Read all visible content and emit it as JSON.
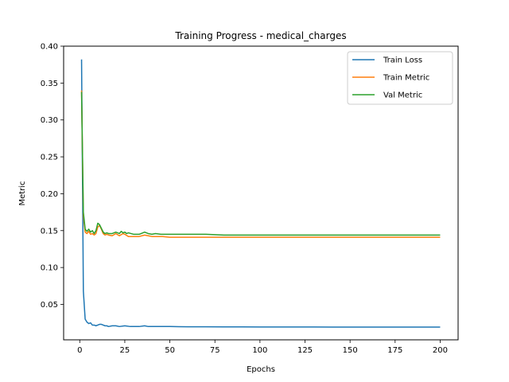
{
  "chart_data": {
    "type": "line",
    "title": "Training Progress - medical_charges",
    "xlabel": "Epochs",
    "ylabel": "Metric",
    "xlim": [
      -8.95,
      209.95
    ],
    "ylim": [
      0.002,
      0.4
    ],
    "xticks": [
      0,
      25,
      50,
      75,
      100,
      125,
      150,
      175,
      200
    ],
    "yticks": [
      0.05,
      0.1,
      0.15,
      0.2,
      0.25,
      0.3,
      0.35,
      0.4
    ],
    "xtick_labels": [
      "0",
      "25",
      "50",
      "75",
      "100",
      "125",
      "150",
      "175",
      "200"
    ],
    "ytick_labels": [
      "0.05",
      "0.10",
      "0.15",
      "0.20",
      "0.25",
      "0.30",
      "0.35",
      "0.40"
    ],
    "grid": false,
    "legend_position": "top-right",
    "series": [
      {
        "name": "Train Loss",
        "color": "#1f77b4",
        "x": [
          1,
          2,
          3,
          4,
          5,
          6,
          7,
          8,
          9,
          10,
          11,
          12,
          13,
          14,
          15,
          16,
          18,
          20,
          22,
          25,
          28,
          30,
          33,
          36,
          38,
          40,
          45,
          50,
          55,
          60,
          70,
          80,
          90,
          100,
          110,
          120,
          130,
          140,
          150,
          160,
          170,
          180,
          190,
          200
        ],
        "y": [
          0.382,
          0.068,
          0.03,
          0.026,
          0.024,
          0.025,
          0.022,
          0.022,
          0.021,
          0.022,
          0.023,
          0.023,
          0.022,
          0.021,
          0.021,
          0.02,
          0.021,
          0.021,
          0.02,
          0.021,
          0.02,
          0.02,
          0.02,
          0.021,
          0.02,
          0.02,
          0.02,
          0.02,
          0.0198,
          0.0197,
          0.0196,
          0.0195,
          0.0195,
          0.0194,
          0.0194,
          0.0194,
          0.0194,
          0.0193,
          0.0193,
          0.0193,
          0.0193,
          0.0193,
          0.0193,
          0.0193
        ]
      },
      {
        "name": "Train Metric",
        "color": "#ff7f0e",
        "x": [
          1,
          2,
          3,
          4,
          5,
          6,
          7,
          8,
          9,
          10,
          11,
          12,
          13,
          14,
          15,
          16,
          18,
          20,
          22,
          24,
          25,
          27,
          30,
          33,
          36,
          38,
          40,
          43,
          46,
          50,
          55,
          60,
          70,
          80,
          90,
          100,
          110,
          120,
          130,
          140,
          150,
          160,
          170,
          180,
          190,
          200
        ],
        "y": [
          0.34,
          0.17,
          0.148,
          0.146,
          0.149,
          0.145,
          0.146,
          0.144,
          0.146,
          0.155,
          0.157,
          0.152,
          0.146,
          0.144,
          0.145,
          0.144,
          0.143,
          0.146,
          0.143,
          0.146,
          0.145,
          0.142,
          0.142,
          0.142,
          0.144,
          0.143,
          0.142,
          0.142,
          0.142,
          0.141,
          0.141,
          0.141,
          0.141,
          0.141,
          0.141,
          0.141,
          0.141,
          0.141,
          0.141,
          0.141,
          0.141,
          0.141,
          0.141,
          0.141,
          0.141,
          0.141
        ]
      },
      {
        "name": "Val Metric",
        "color": "#2ca02c",
        "x": [
          1,
          2,
          3,
          4,
          5,
          6,
          7,
          8,
          9,
          10,
          11,
          12,
          13,
          14,
          15,
          16,
          18,
          19,
          20,
          22,
          23,
          24,
          25,
          26,
          27,
          30,
          33,
          36,
          38,
          40,
          42,
          45,
          50,
          55,
          60,
          70,
          80,
          90,
          100,
          110,
          120,
          130,
          140,
          150,
          160,
          170,
          180,
          190,
          200
        ],
        "y": [
          0.338,
          0.175,
          0.152,
          0.149,
          0.152,
          0.148,
          0.15,
          0.146,
          0.15,
          0.16,
          0.158,
          0.153,
          0.148,
          0.146,
          0.147,
          0.146,
          0.146,
          0.147,
          0.148,
          0.146,
          0.149,
          0.147,
          0.148,
          0.146,
          0.147,
          0.145,
          0.145,
          0.148,
          0.146,
          0.145,
          0.146,
          0.145,
          0.145,
          0.145,
          0.145,
          0.145,
          0.144,
          0.144,
          0.144,
          0.144,
          0.144,
          0.144,
          0.144,
          0.144,
          0.144,
          0.144,
          0.144,
          0.144,
          0.144
        ]
      }
    ]
  }
}
